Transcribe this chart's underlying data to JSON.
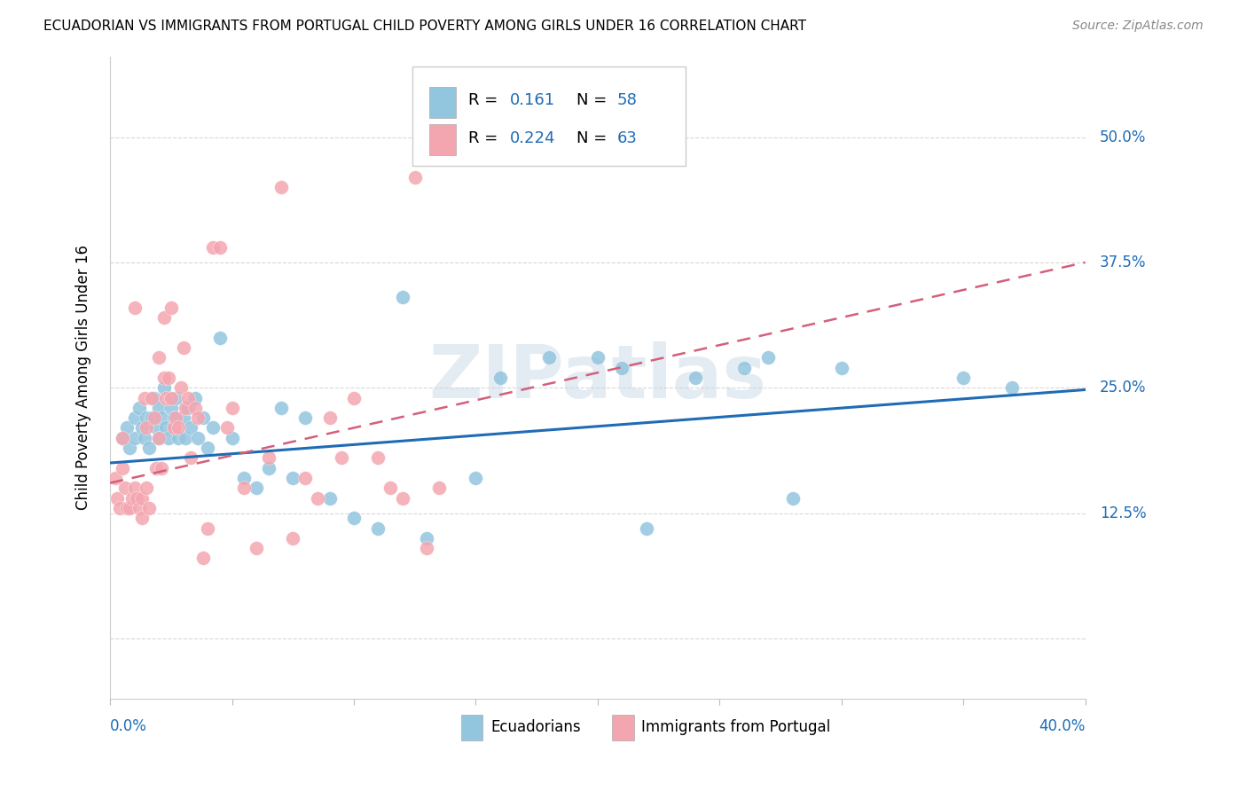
{
  "title": "ECUADORIAN VS IMMIGRANTS FROM PORTUGAL CHILD POVERTY AMONG GIRLS UNDER 16 CORRELATION CHART",
  "source": "Source: ZipAtlas.com",
  "ylabel": "Child Poverty Among Girls Under 16",
  "yticks": [
    0.0,
    0.125,
    0.25,
    0.375,
    0.5
  ],
  "ytick_labels": [
    "",
    "12.5%",
    "25.0%",
    "37.5%",
    "50.0%"
  ],
  "xmin": 0.0,
  "xmax": 0.4,
  "ymin": -0.06,
  "ymax": 0.58,
  "R_blue": 0.161,
  "N_blue": 58,
  "R_pink": 0.224,
  "N_pink": 63,
  "blue_color": "#92c5de",
  "blue_line_color": "#1f6cb5",
  "pink_color": "#f4a6b0",
  "pink_line_color": "#d45f7a",
  "watermark": "ZIPatlas",
  "blue_scatter_x": [
    0.005,
    0.007,
    0.008,
    0.01,
    0.01,
    0.012,
    0.013,
    0.014,
    0.015,
    0.016,
    0.017,
    0.018,
    0.019,
    0.02,
    0.02,
    0.021,
    0.022,
    0.023,
    0.024,
    0.025,
    0.026,
    0.027,
    0.028,
    0.03,
    0.031,
    0.032,
    0.033,
    0.035,
    0.036,
    0.038,
    0.04,
    0.042,
    0.045,
    0.05,
    0.055,
    0.06,
    0.065,
    0.07,
    0.075,
    0.08,
    0.09,
    0.1,
    0.11,
    0.12,
    0.13,
    0.15,
    0.16,
    0.18,
    0.2,
    0.21,
    0.22,
    0.24,
    0.26,
    0.27,
    0.28,
    0.3,
    0.35,
    0.37
  ],
  "blue_scatter_y": [
    0.2,
    0.21,
    0.19,
    0.22,
    0.2,
    0.23,
    0.21,
    0.2,
    0.22,
    0.19,
    0.22,
    0.24,
    0.21,
    0.23,
    0.2,
    0.22,
    0.25,
    0.21,
    0.2,
    0.23,
    0.22,
    0.24,
    0.2,
    0.22,
    0.2,
    0.23,
    0.21,
    0.24,
    0.2,
    0.22,
    0.19,
    0.21,
    0.3,
    0.2,
    0.16,
    0.15,
    0.17,
    0.23,
    0.16,
    0.22,
    0.14,
    0.12,
    0.11,
    0.34,
    0.1,
    0.16,
    0.26,
    0.28,
    0.28,
    0.27,
    0.11,
    0.26,
    0.27,
    0.28,
    0.14,
    0.27,
    0.26,
    0.25
  ],
  "pink_scatter_x": [
    0.002,
    0.003,
    0.004,
    0.005,
    0.005,
    0.006,
    0.007,
    0.008,
    0.009,
    0.01,
    0.01,
    0.011,
    0.012,
    0.013,
    0.013,
    0.014,
    0.015,
    0.015,
    0.016,
    0.017,
    0.018,
    0.019,
    0.02,
    0.02,
    0.021,
    0.022,
    0.022,
    0.023,
    0.024,
    0.025,
    0.025,
    0.026,
    0.027,
    0.028,
    0.029,
    0.03,
    0.031,
    0.032,
    0.033,
    0.035,
    0.036,
    0.038,
    0.04,
    0.042,
    0.045,
    0.048,
    0.05,
    0.055,
    0.06,
    0.065,
    0.07,
    0.075,
    0.08,
    0.085,
    0.09,
    0.095,
    0.1,
    0.11,
    0.115,
    0.12,
    0.125,
    0.13,
    0.135
  ],
  "pink_scatter_y": [
    0.16,
    0.14,
    0.13,
    0.17,
    0.2,
    0.15,
    0.13,
    0.13,
    0.14,
    0.15,
    0.33,
    0.14,
    0.13,
    0.12,
    0.14,
    0.24,
    0.15,
    0.21,
    0.13,
    0.24,
    0.22,
    0.17,
    0.2,
    0.28,
    0.17,
    0.26,
    0.32,
    0.24,
    0.26,
    0.24,
    0.33,
    0.21,
    0.22,
    0.21,
    0.25,
    0.29,
    0.23,
    0.24,
    0.18,
    0.23,
    0.22,
    0.08,
    0.11,
    0.39,
    0.39,
    0.21,
    0.23,
    0.15,
    0.09,
    0.18,
    0.45,
    0.1,
    0.16,
    0.14,
    0.22,
    0.18,
    0.24,
    0.18,
    0.15,
    0.14,
    0.46,
    0.09,
    0.15
  ],
  "blue_line_x0": 0.0,
  "blue_line_x1": 0.4,
  "blue_line_y0": 0.175,
  "blue_line_y1": 0.248,
  "pink_line_x0": 0.0,
  "pink_line_x1": 0.4,
  "pink_line_y0": 0.155,
  "pink_line_y1": 0.375
}
